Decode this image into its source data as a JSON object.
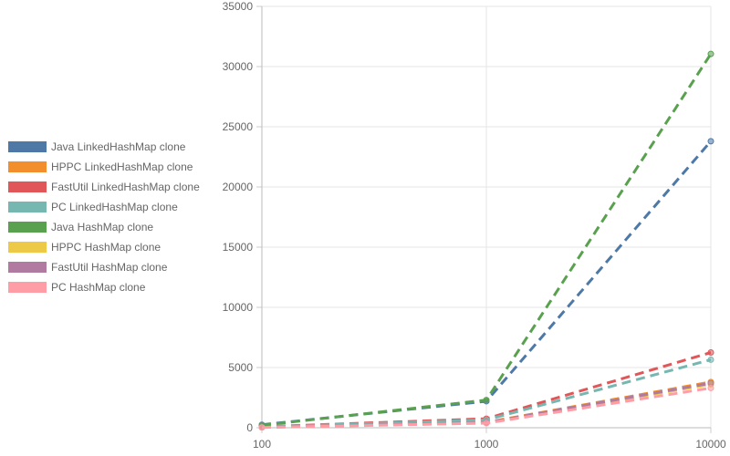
{
  "chart_data": {
    "type": "line",
    "x_scale": "log",
    "x": [
      100,
      1000,
      10000
    ],
    "x_ticks": [
      "100",
      "1000",
      "10000"
    ],
    "y_ticks": [
      "0",
      "5000",
      "10000",
      "15000",
      "20000",
      "25000",
      "30000",
      "35000"
    ],
    "ylim": [
      0,
      35000
    ],
    "grid": true,
    "legend_position": "left",
    "line_style": "dashed",
    "series": [
      {
        "name": "Java LinkedHashMap  clone",
        "color": "#4e79a7",
        "values": [
          250,
          2200,
          23800
        ]
      },
      {
        "name": "HPPC LinkedHashMap  clone",
        "color": "#f28e2b",
        "values": [
          40,
          450,
          3800
        ]
      },
      {
        "name": "FastUtil LinkedHashMap  clone",
        "color": "#e15759",
        "values": [
          80,
          750,
          6250
        ]
      },
      {
        "name": "PC LinkedHashMap  clone",
        "color": "#76b7b2",
        "values": [
          60,
          650,
          5650
        ]
      },
      {
        "name": "Java HashMap  clone",
        "color": "#59a14f",
        "values": [
          200,
          2300,
          31050
        ]
      },
      {
        "name": "HPPC HashMap  clone",
        "color": "#edc948",
        "values": [
          30,
          400,
          3600
        ]
      },
      {
        "name": "FastUtil HashMap  clone",
        "color": "#b07aa1",
        "values": [
          35,
          420,
          3700
        ]
      },
      {
        "name": "PC HashMap  clone",
        "color": "#ff9da7",
        "values": [
          20,
          380,
          3300
        ]
      }
    ]
  }
}
